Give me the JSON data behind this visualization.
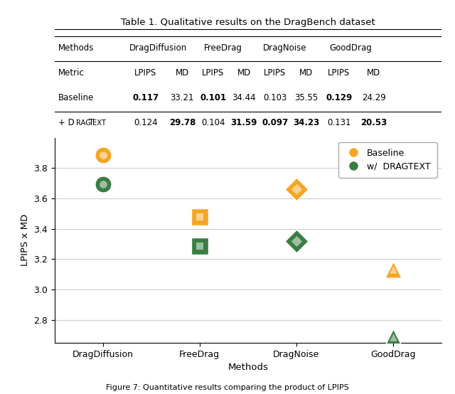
{
  "methods": [
    "DragDiffusion",
    "FreeDrag",
    "DragNoise",
    "GoodDrag"
  ],
  "baseline_values": [
    3.886,
    3.478,
    3.662,
    3.133
  ],
  "dragtext_values": [
    3.693,
    3.285,
    3.32,
    2.689
  ],
  "baseline_color": "#F5A623",
  "dragtext_color": "#3A7D44",
  "baseline_edge_color": "#ffffff",
  "dragtext_edge_color": "#ffffff",
  "markers_baseline": [
    "o",
    "s",
    "D",
    "^"
  ],
  "markers_dragtext": [
    "o",
    "s",
    "D",
    "^"
  ],
  "ylabel": "LPIPS x MD",
  "xlabel": "Methods",
  "ylim": [
    2.65,
    4.0
  ],
  "yticks": [
    2.8,
    3.0,
    3.2,
    3.4,
    3.6,
    3.8
  ],
  "title": "Table 1. Qualitative results on the DragBench dataset",
  "table_headers_row1": [
    "Methods",
    "DragDiffusion",
    "",
    "FreeDrag",
    "",
    "DragNoise",
    "",
    "GoodDrag",
    ""
  ],
  "table_headers_row2": [
    "Metric",
    "LPIPS",
    "MD",
    "LPIPS",
    "MD",
    "LPIPS",
    "MD",
    "LPIPS",
    "MD"
  ],
  "table_row_baseline": [
    "Baseline",
    "0.117",
    "33.21",
    "0.101",
    "34.44",
    "0.103",
    "35.55",
    "0.129",
    "24.29"
  ],
  "table_row_dragtext": [
    "+ DragText",
    "0.124",
    "29.78",
    "0.104",
    "31.59",
    "0.097",
    "34.23",
    "0.131",
    "20.53"
  ],
  "bold_baseline": [
    1,
    0,
    1,
    0,
    0,
    0,
    1,
    0
  ],
  "bold_dragtext": [
    0,
    1,
    0,
    1,
    1,
    1,
    0,
    1
  ],
  "marker_size": 200,
  "figure_bg": "#ffffff",
  "ax_bg": "#ffffff",
  "grid_color": "#cccccc",
  "caption": "Figure 7: Quantitative results comparing the product of LPIPS"
}
